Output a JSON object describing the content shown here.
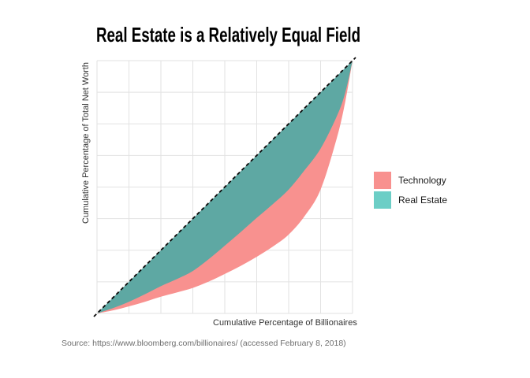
{
  "title": "Real Estate is a Relatively Equal Field",
  "axes": {
    "x_label": "Cumulative Percentage of Billionaires",
    "y_label": "Cumulative Percentage of Total Net Worth"
  },
  "source": "Source: https://www.bloomberg.com/billionaires/ (accessed February 8, 2018)",
  "legend": [
    {
      "label": "Technology",
      "color": "#F8918F"
    },
    {
      "label": "Real Estate",
      "color": "#6CCEC6"
    }
  ],
  "colors": {
    "background": "#ffffff",
    "gridline": "#E2E2E2",
    "equality_line": "#0a0a0a",
    "technology_fill": "#F8918F",
    "real_estate_fill_on_plot": "#5EA8A3",
    "real_estate_legend": "#6CCEC6",
    "title_text": "#000000",
    "axis_text": "#333333",
    "source_text": "#6e6e6e"
  },
  "chart_data": {
    "type": "area",
    "subtype": "lorenz-curves",
    "title": "Real Estate is a Relatively Equal Field",
    "xlabel": "Cumulative Percentage of Billionaires",
    "ylabel": "Cumulative Percentage of Total Net Worth",
    "xlim": [
      0,
      1
    ],
    "ylim": [
      0,
      1
    ],
    "tick_labels_shown": false,
    "grid": {
      "on": true,
      "interval": 0.125,
      "color": "#E2E2E2"
    },
    "equality_line": {
      "style": "dashed",
      "from": [
        0,
        0
      ],
      "to": [
        1,
        1
      ],
      "color": "#0a0a0a"
    },
    "legend_position": "right",
    "series": [
      {
        "name": "Technology",
        "fill": "#F8918F",
        "ribbon": "between equality diagonal and curve",
        "points": [
          [
            0,
            0
          ],
          [
            0.0625,
            0.012
          ],
          [
            0.125,
            0.028
          ],
          [
            0.1875,
            0.046
          ],
          [
            0.25,
            0.066
          ],
          [
            0.3125,
            0.083
          ],
          [
            0.375,
            0.101
          ],
          [
            0.4375,
            0.126
          ],
          [
            0.5,
            0.156
          ],
          [
            0.5625,
            0.188
          ],
          [
            0.625,
            0.224
          ],
          [
            0.6875,
            0.264
          ],
          [
            0.75,
            0.312
          ],
          [
            0.8125,
            0.385
          ],
          [
            0.875,
            0.49
          ],
          [
            0.9375,
            0.69
          ],
          [
            0.97,
            0.83
          ],
          [
            1,
            1
          ]
        ]
      },
      {
        "name": "Real Estate",
        "fill": "#5EA8A3",
        "legend_fill": "#6CCEC6",
        "ribbon": "between equality diagonal and curve",
        "points": [
          [
            0,
            0
          ],
          [
            0.0625,
            0.021
          ],
          [
            0.125,
            0.046
          ],
          [
            0.1875,
            0.076
          ],
          [
            0.25,
            0.108
          ],
          [
            0.3125,
            0.136
          ],
          [
            0.375,
            0.168
          ],
          [
            0.4375,
            0.215
          ],
          [
            0.5,
            0.268
          ],
          [
            0.5625,
            0.322
          ],
          [
            0.625,
            0.378
          ],
          [
            0.6875,
            0.432
          ],
          [
            0.75,
            0.49
          ],
          [
            0.8125,
            0.567
          ],
          [
            0.875,
            0.652
          ],
          [
            0.9375,
            0.778
          ],
          [
            0.97,
            0.868
          ],
          [
            1,
            1
          ]
        ]
      }
    ]
  }
}
